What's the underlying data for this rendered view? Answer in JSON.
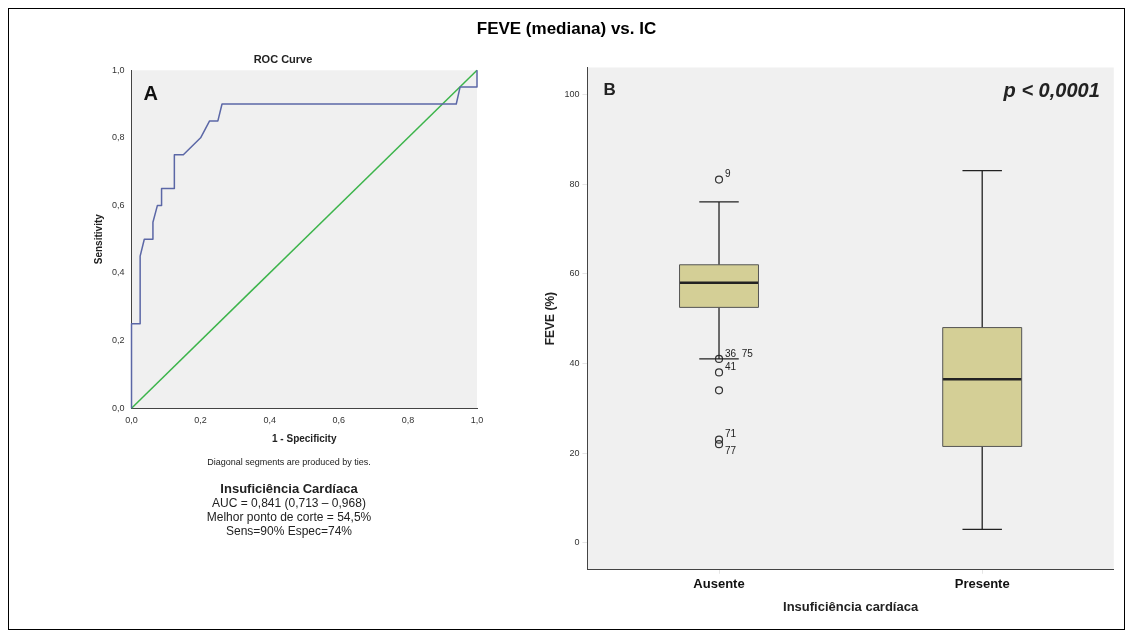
{
  "chart_data": [
    {
      "type": "line",
      "title": "ROC Curve",
      "xlabel": "1 - Specificity",
      "ylabel": "Sensitivity",
      "series": [
        {
          "color": "#5b67a6",
          "x": [
            0,
            0,
            0.025,
            0.025,
            0.037,
            0.062,
            0.062,
            0.075,
            0.087,
            0.087,
            0.124,
            0.124,
            0.15,
            0.2,
            0.226,
            0.25,
            0.262,
            0.94,
            0.951,
            1,
            1
          ],
          "values": [
            0,
            0.25,
            0.25,
            0.45,
            0.5,
            0.5,
            0.55,
            0.6,
            0.6,
            0.65,
            0.65,
            0.75,
            0.75,
            0.8,
            0.85,
            0.85,
            0.9,
            0.9,
            0.95,
            0.95,
            1
          ]
        },
        {
          "color": "#3cb44b",
          "x": [
            0,
            1
          ],
          "values": [
            0,
            1
          ]
        }
      ],
      "xlim": [
        0,
        1
      ],
      "ylim": [
        0,
        1
      ],
      "xticks": [
        {
          "value": 0,
          "label": "0,0"
        },
        {
          "value": 0.2,
          "label": "0,2"
        },
        {
          "value": 0.4,
          "label": "0,4"
        },
        {
          "value": 0.6,
          "label": "0,6"
        },
        {
          "value": 0.8,
          "label": "0,8"
        },
        {
          "value": 1,
          "label": "1,0"
        }
      ],
      "yticks": [
        {
          "value": 0,
          "label": "0,0"
        },
        {
          "value": 0.2,
          "label": "0,2"
        },
        {
          "value": 0.4,
          "label": "0,4"
        },
        {
          "value": 0.6,
          "label": "0,6"
        },
        {
          "value": 0.8,
          "label": "0,8"
        },
        {
          "value": 1,
          "label": "1,0"
        }
      ],
      "grid": false,
      "legend": false,
      "marker": "none",
      "line_style": "solid",
      "annotations": [
        "A",
        "Diagonal segments are produced by ties.",
        "Insuficiência Cardíaca",
        "AUC = 0,841 (0,713 – 0,968)",
        "Melhor ponto de corte = 54,5%",
        "Sens=90%   Espec=74%"
      ]
    },
    {
      "type": "box",
      "title": "FEVE (mediana) vs. IC",
      "xlabel": "Insuficiência cardíaca",
      "ylabel": "FEVE (%)",
      "categories": [
        "Ausente",
        "Presente"
      ],
      "color": "#d4cf96",
      "boxes": [
        {
          "low": 41,
          "q1": 52.5,
          "median": 58,
          "q3": 62,
          "high": 76
        },
        {
          "low": 3,
          "q1": 21.5,
          "median": 36.5,
          "q3": 48,
          "high": 83
        }
      ],
      "series": [
        {
          "type": "scatter",
          "color": "#333333",
          "x": [
            "Ausente",
            "Ausente",
            "Ausente",
            "Ausente",
            "Ausente",
            "Ausente"
          ],
          "values": [
            81,
            41,
            38,
            34,
            23,
            22
          ]
        }
      ],
      "marker": "circle",
      "ylim": [
        -6,
        106
      ],
      "yticks": [
        0,
        20,
        40,
        60,
        80,
        100
      ],
      "grid": false,
      "legend": false,
      "annotations": [
        "B",
        "p < 0,0001",
        {
          "text": "9",
          "x": "Ausente",
          "y": 81
        },
        {
          "text": "36  75",
          "x": "Ausente",
          "y": 41
        },
        {
          "text": "41",
          "x": "Ausente",
          "y": 38
        },
        {
          "text": "71",
          "x": "Ausente",
          "y": 23
        },
        {
          "text": "77",
          "x": "Ausente",
          "y": 22
        }
      ]
    }
  ]
}
